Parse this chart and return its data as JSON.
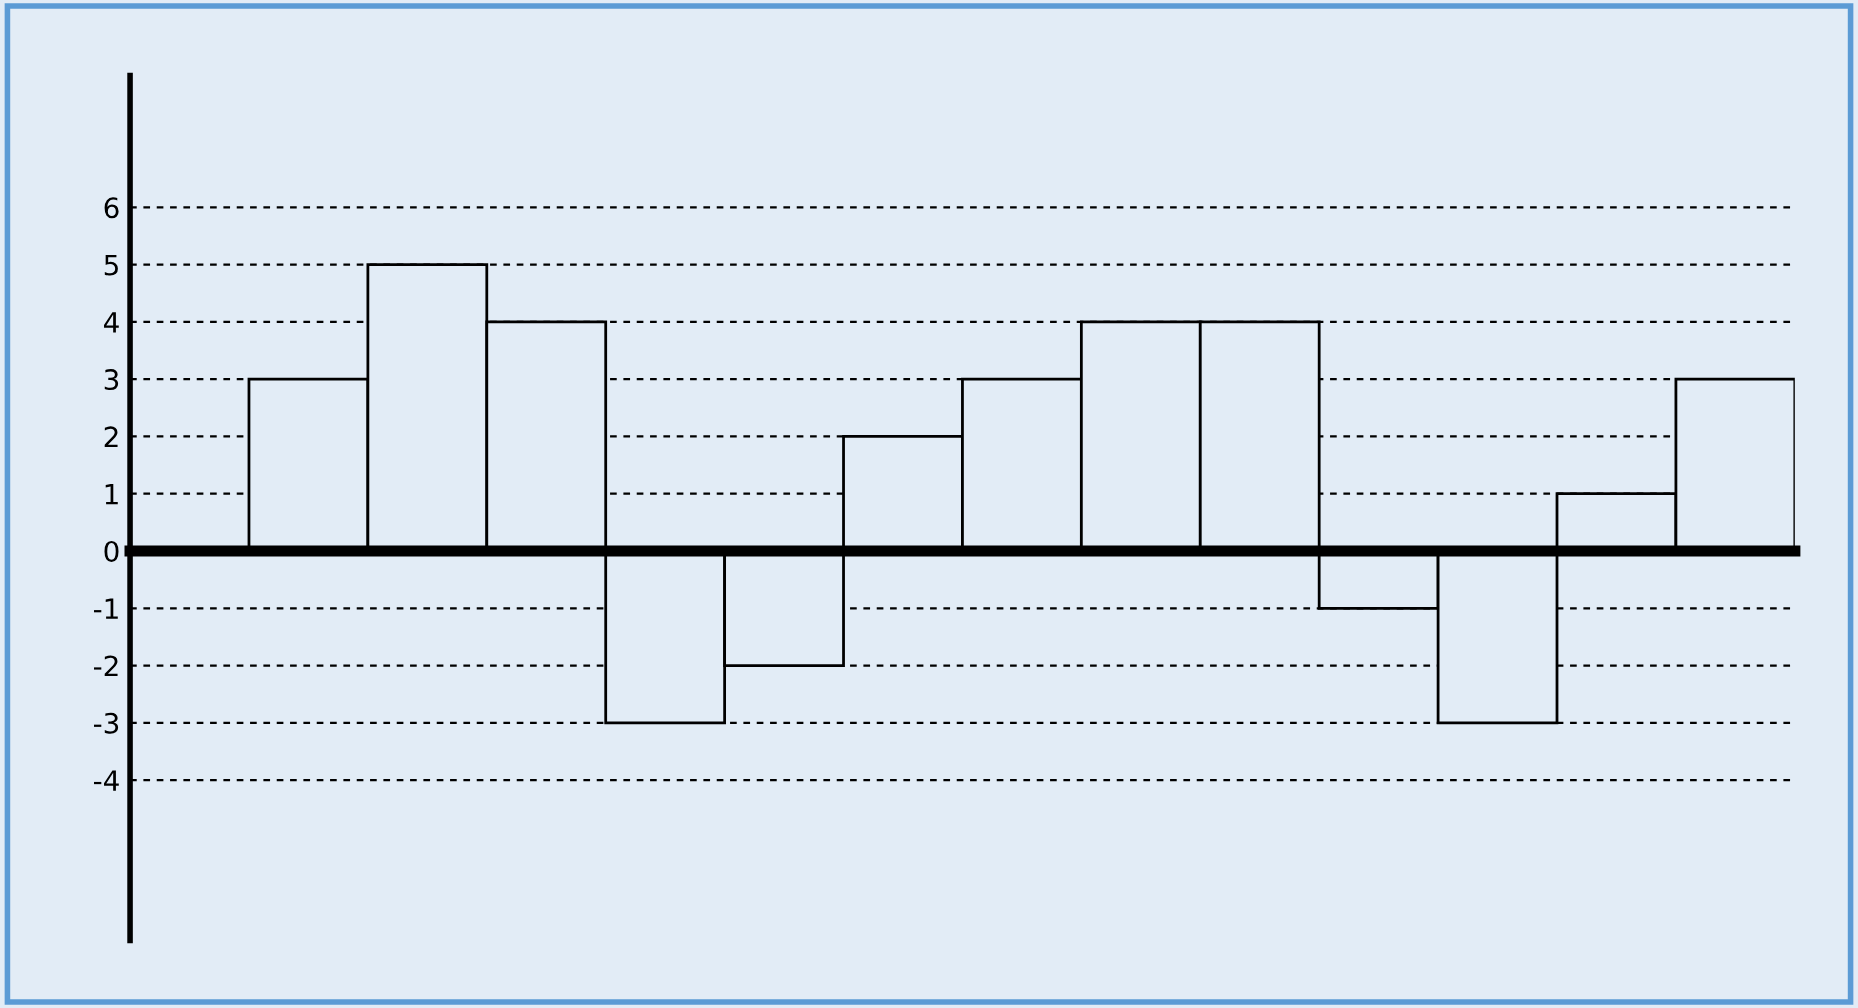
{
  "chart_data": {
    "type": "bar",
    "categories": [
      null,
      null,
      null,
      null,
      null,
      null,
      null,
      null,
      null,
      null,
      null,
      null,
      null,
      null
    ],
    "values": [
      null,
      3,
      5,
      4,
      -3,
      -2,
      2,
      3,
      4,
      4,
      -1,
      -3,
      1,
      3
    ],
    "color": "#000000",
    "ylim": [
      -6.8,
      8.3
    ],
    "yticks": [
      -4,
      -3,
      -2,
      -1,
      0,
      1,
      2,
      3,
      4,
      5,
      6
    ],
    "grid": "y",
    "tick_labels": "y"
  }
}
